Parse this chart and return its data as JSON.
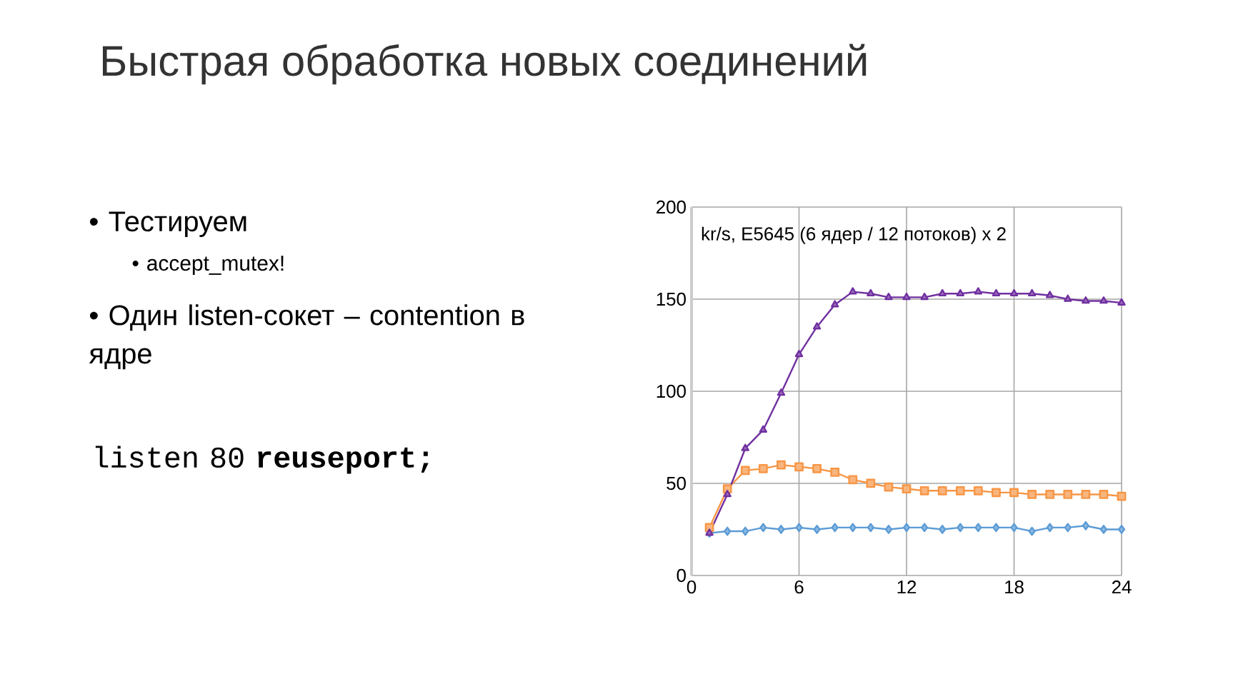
{
  "chart_data": [
    {
      "type": "other",
      "title": "Быстрая обработка новых соединений",
      "annotations": [
        "• Тестируем",
        "• accept_mutex!",
        "• Один listen-сокет – contention в ядре",
        "listen 80 **reuseport;**"
      ]
    },
    {
      "type": "line",
      "title": "kr/s,  E5645 (6 ядер / 12 потоков) x 2",
      "x": [
        1,
        2,
        3,
        4,
        5,
        6,
        7,
        8,
        9,
        10,
        11,
        12,
        13,
        14,
        15,
        16,
        17,
        18,
        19,
        20,
        21,
        22,
        23,
        24
      ],
      "series": [
        {
          "color": "#5b9bd5",
          "marker": "diamond",
          "values": [
            23,
            24,
            24,
            26,
            25,
            26,
            25,
            26,
            26,
            26,
            25,
            26,
            26,
            25,
            26,
            26,
            26,
            26,
            24,
            26,
            26,
            27,
            25,
            25
          ]
        },
        {
          "color": "#f79646",
          "marker": "square",
          "values": [
            26,
            47,
            57,
            58,
            60,
            59,
            58,
            56,
            52,
            50,
            48,
            47,
            46,
            46,
            46,
            46,
            45,
            45,
            44,
            44,
            44,
            44,
            44,
            43
          ]
        },
        {
          "color": "#7030a0",
          "marker": "triangle",
          "values": [
            23,
            44,
            69,
            79,
            99,
            120,
            135,
            147,
            154,
            153,
            151,
            151,
            151,
            153,
            153,
            154,
            153,
            153,
            153,
            152,
            150,
            149,
            149,
            148
          ]
        }
      ],
      "xlim": [
        0,
        24
      ],
      "xticks": [
        0,
        6,
        12,
        18,
        24
      ],
      "ylim": [
        0,
        200
      ],
      "yticks": [
        0,
        50,
        100,
        150,
        200
      ],
      "grid": true,
      "line_style": "solid"
    }
  ]
}
